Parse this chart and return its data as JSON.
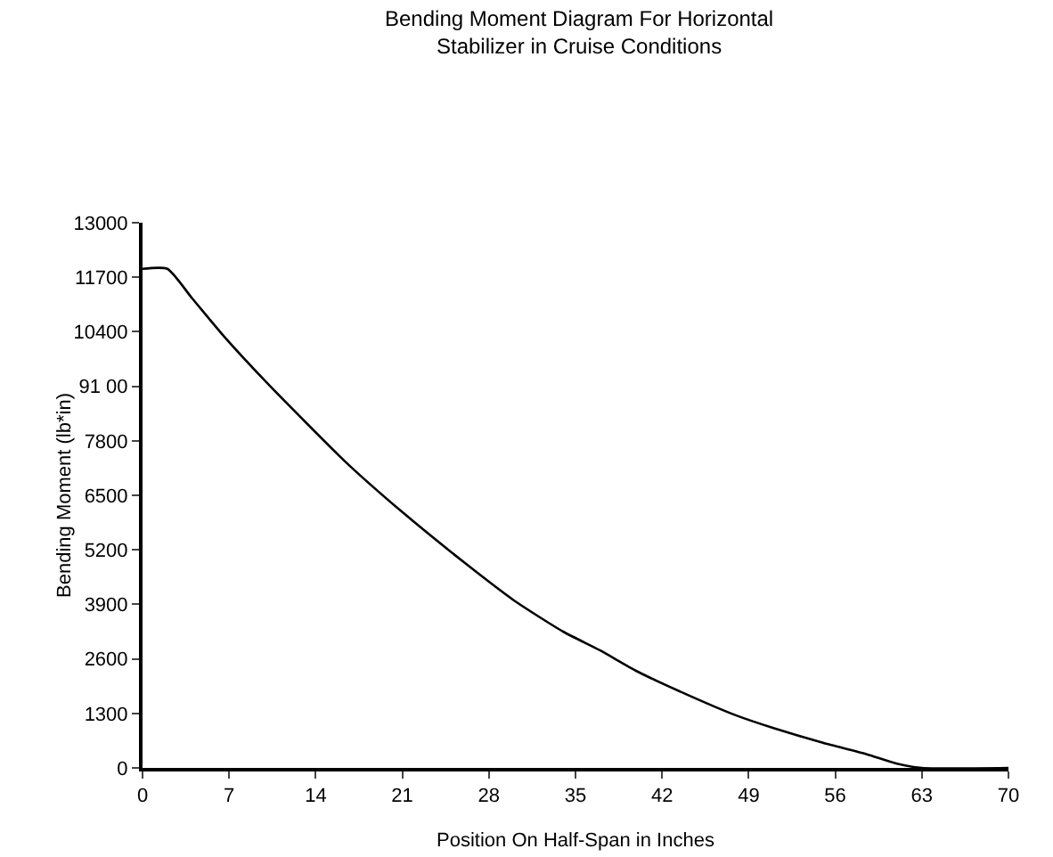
{
  "chart_data": {
    "type": "line",
    "title": "Bending Moment Diagram For Horizontal\nStabilizer in Cruise Conditions",
    "xlabel": "Position On Half-Span in Inches",
    "ylabel": "Bending Moment (lb*in)",
    "x": [
      0,
      2,
      4,
      6.7,
      10,
      16.4,
      21,
      26,
      30,
      34,
      37,
      40,
      44,
      48,
      51,
      55,
      58.5,
      61,
      63,
      70
    ],
    "series": [
      {
        "color": "#000000",
        "values": [
          11900,
          11900,
          11200,
          10250,
          9200,
          7300,
          6100,
          4900,
          4000,
          3250,
          2800,
          2300,
          1750,
          1250,
          950,
          600,
          330,
          100,
          0,
          0
        ]
      }
    ],
    "xlim": [
      0,
      70
    ],
    "xticks": [
      0,
      7,
      14,
      21,
      28,
      35,
      42,
      49,
      56,
      63,
      70
    ],
    "ylim": [
      0,
      13000
    ],
    "yticks": [
      0,
      1300,
      2600,
      3900,
      5200,
      6500,
      7800,
      {
        "value": 9100,
        "label": "91 00"
      },
      10400,
      11700,
      13000
    ],
    "grid": false,
    "marker": "none",
    "line_style": "solid"
  }
}
